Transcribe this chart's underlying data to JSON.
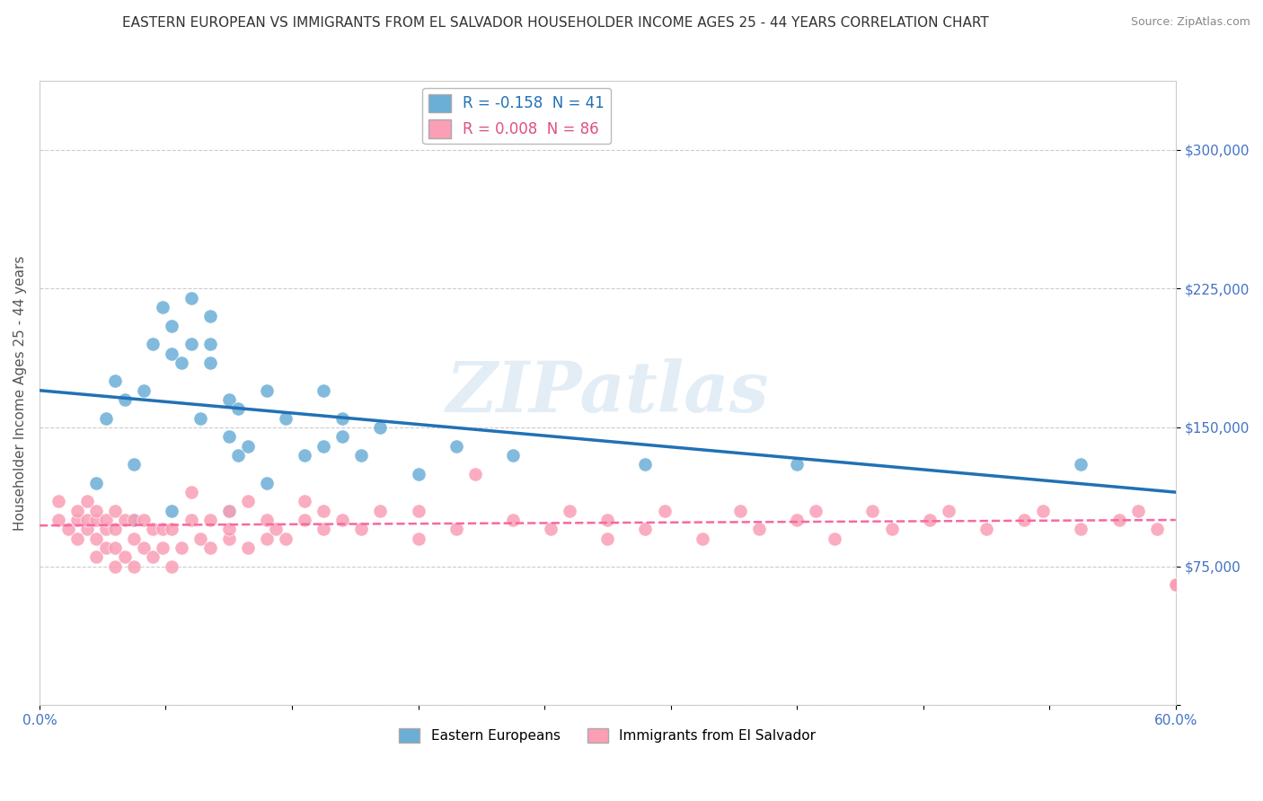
{
  "title": "EASTERN EUROPEAN VS IMMIGRANTS FROM EL SALVADOR HOUSEHOLDER INCOME AGES 25 - 44 YEARS CORRELATION CHART",
  "source": "Source: ZipAtlas.com",
  "ylabel": "Householder Income Ages 25 - 44 years",
  "xlim": [
    0.0,
    0.6
  ],
  "ylim": [
    0,
    337500
  ],
  "yticks": [
    0,
    75000,
    150000,
    225000,
    300000
  ],
  "ytick_labels": [
    "",
    "$75,000",
    "$150,000",
    "$225,000",
    "$300,000"
  ],
  "watermark": "ZIPatlas",
  "legend_blue_label": "R = -0.158  N = 41",
  "legend_pink_label": "R = 0.008  N = 86",
  "legend_blue_group": "Eastern Europeans",
  "legend_pink_group": "Immigrants from El Salvador",
  "blue_color": "#6baed6",
  "pink_color": "#fa9fb5",
  "blue_line_color": "#2171b5",
  "pink_line_color": "#f768a1",
  "title_fontsize": 11,
  "source_fontsize": 9,
  "blue_scatter_x": [
    0.03,
    0.035,
    0.04,
    0.045,
    0.05,
    0.05,
    0.055,
    0.06,
    0.065,
    0.07,
    0.07,
    0.07,
    0.075,
    0.08,
    0.08,
    0.085,
    0.09,
    0.09,
    0.09,
    0.1,
    0.1,
    0.1,
    0.105,
    0.105,
    0.11,
    0.12,
    0.12,
    0.13,
    0.14,
    0.15,
    0.15,
    0.16,
    0.16,
    0.17,
    0.18,
    0.2,
    0.22,
    0.25,
    0.32,
    0.4,
    0.55
  ],
  "blue_scatter_y": [
    120000,
    155000,
    175000,
    165000,
    100000,
    130000,
    170000,
    195000,
    215000,
    105000,
    190000,
    205000,
    185000,
    195000,
    220000,
    155000,
    210000,
    195000,
    185000,
    165000,
    105000,
    145000,
    160000,
    135000,
    140000,
    120000,
    170000,
    155000,
    135000,
    170000,
    140000,
    145000,
    155000,
    135000,
    150000,
    125000,
    140000,
    135000,
    130000,
    130000,
    130000
  ],
  "pink_scatter_x": [
    0.01,
    0.01,
    0.015,
    0.02,
    0.02,
    0.02,
    0.025,
    0.025,
    0.025,
    0.03,
    0.03,
    0.03,
    0.03,
    0.035,
    0.035,
    0.035,
    0.04,
    0.04,
    0.04,
    0.04,
    0.045,
    0.045,
    0.05,
    0.05,
    0.05,
    0.055,
    0.055,
    0.06,
    0.06,
    0.065,
    0.065,
    0.07,
    0.07,
    0.075,
    0.08,
    0.08,
    0.085,
    0.09,
    0.09,
    0.1,
    0.1,
    0.1,
    0.11,
    0.11,
    0.12,
    0.12,
    0.125,
    0.13,
    0.14,
    0.14,
    0.15,
    0.15,
    0.16,
    0.17,
    0.18,
    0.2,
    0.2,
    0.22,
    0.23,
    0.25,
    0.27,
    0.28,
    0.3,
    0.3,
    0.32,
    0.33,
    0.35,
    0.37,
    0.38,
    0.4,
    0.41,
    0.42,
    0.44,
    0.45,
    0.47,
    0.48,
    0.5,
    0.52,
    0.53,
    0.55,
    0.57,
    0.58,
    0.59,
    0.6,
    0.6,
    0.6
  ],
  "pink_scatter_y": [
    100000,
    110000,
    95000,
    90000,
    100000,
    105000,
    95000,
    100000,
    110000,
    80000,
    90000,
    100000,
    105000,
    85000,
    95000,
    100000,
    75000,
    85000,
    95000,
    105000,
    80000,
    100000,
    75000,
    90000,
    100000,
    85000,
    100000,
    80000,
    95000,
    85000,
    95000,
    75000,
    95000,
    85000,
    100000,
    115000,
    90000,
    85000,
    100000,
    90000,
    95000,
    105000,
    85000,
    110000,
    90000,
    100000,
    95000,
    90000,
    100000,
    110000,
    95000,
    105000,
    100000,
    95000,
    105000,
    90000,
    105000,
    95000,
    125000,
    100000,
    95000,
    105000,
    90000,
    100000,
    95000,
    105000,
    90000,
    105000,
    95000,
    100000,
    105000,
    90000,
    105000,
    95000,
    100000,
    105000,
    95000,
    100000,
    105000,
    95000,
    100000,
    105000,
    95000,
    65000,
    65000,
    65000
  ],
  "blue_trend_x": [
    0.0,
    0.6
  ],
  "blue_trend_y": [
    170000,
    115000
  ],
  "pink_trend_x": [
    0.0,
    0.6
  ],
  "pink_trend_y": [
    97000,
    100000
  ],
  "background_color": "#ffffff",
  "grid_color": "#cccccc"
}
